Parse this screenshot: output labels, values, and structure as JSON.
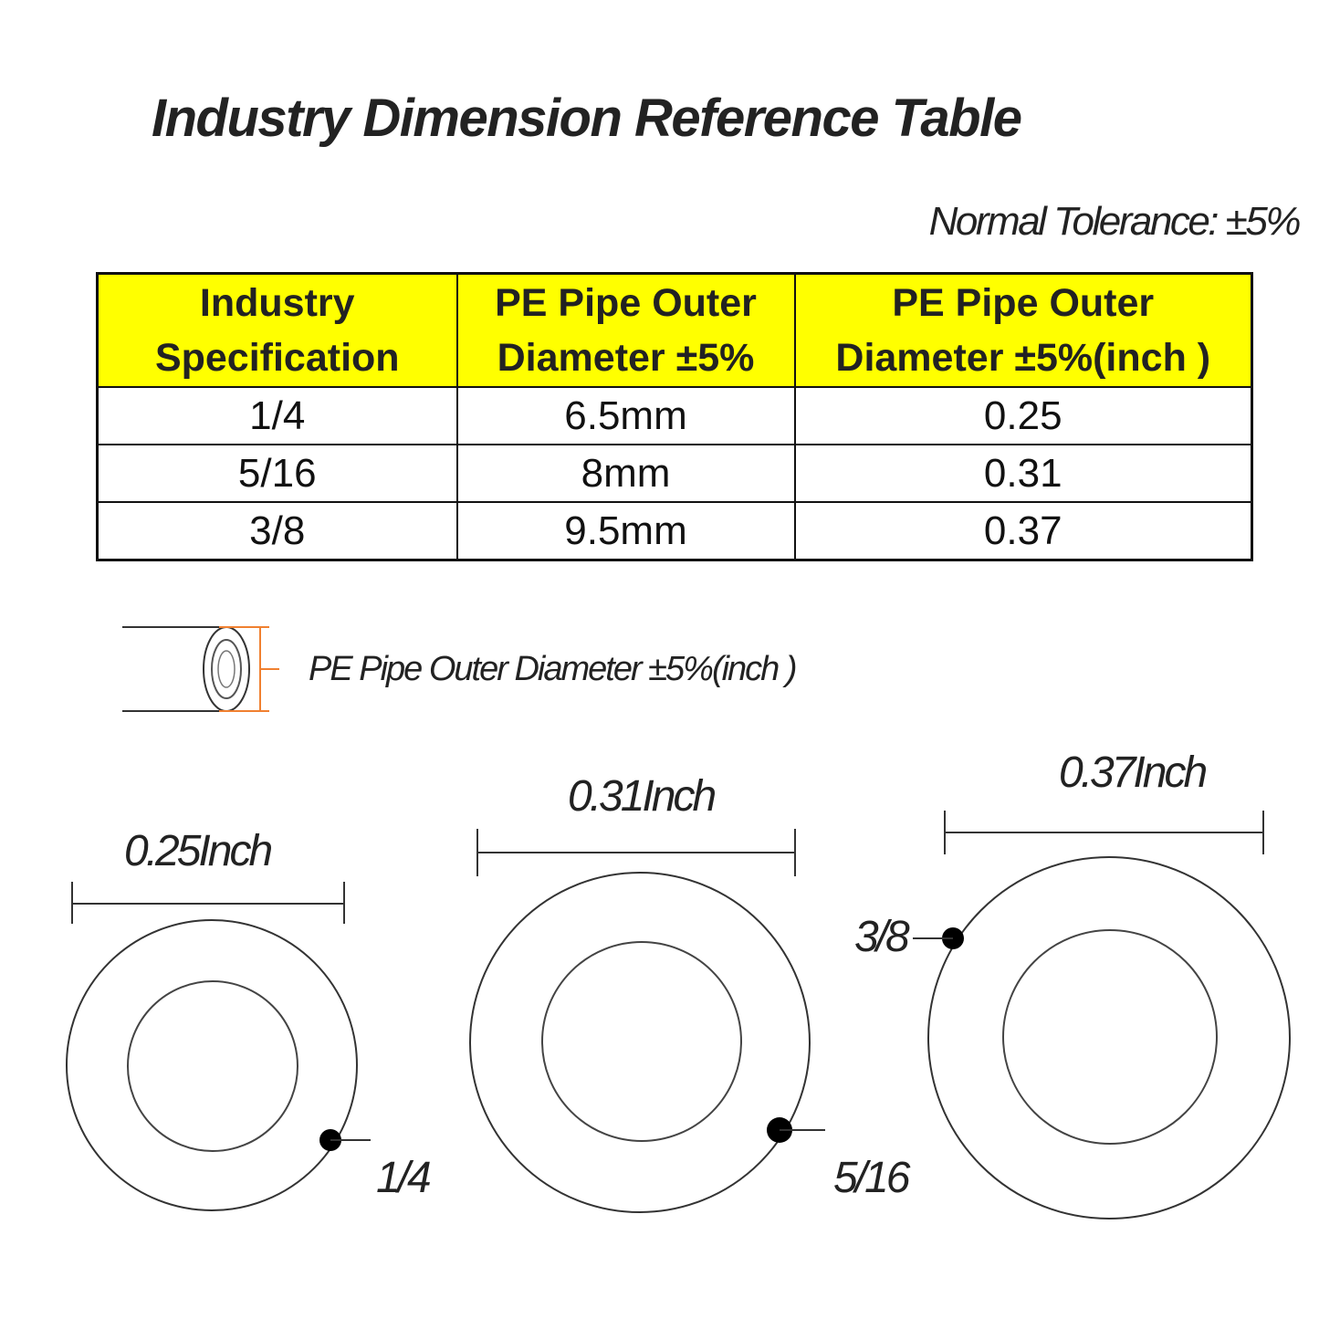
{
  "title": "Industry Dimension Reference Table",
  "tolerance": "Normal Tolerance: ±5%",
  "table": {
    "headers": [
      {
        "line1": "Industry",
        "line2": "Specification"
      },
      {
        "line1": "PE Pipe Outer",
        "line2": "Diameter ±5%"
      },
      {
        "line1": "PE Pipe Outer",
        "line2": "Diameter ±5%(inch )"
      }
    ],
    "rows": [
      {
        "spec": "1/4",
        "mm": "6.5mm",
        "inch": "0.25"
      },
      {
        "spec": "5/16",
        "mm": "8mm",
        "inch": "0.31"
      },
      {
        "spec": "3/8",
        "mm": "9.5mm",
        "inch": "0.37"
      }
    ],
    "header_color": "#ffff00"
  },
  "legend": {
    "label": "PE Pipe Outer Diameter ±5%(inch )",
    "accent_color": "#f08030"
  },
  "rings": [
    {
      "spec": "1/4",
      "dimension": "0.25Inch"
    },
    {
      "spec": "5/16",
      "dimension": "0.31Inch"
    },
    {
      "spec": "3/8",
      "dimension": "0.37Inch"
    }
  ]
}
